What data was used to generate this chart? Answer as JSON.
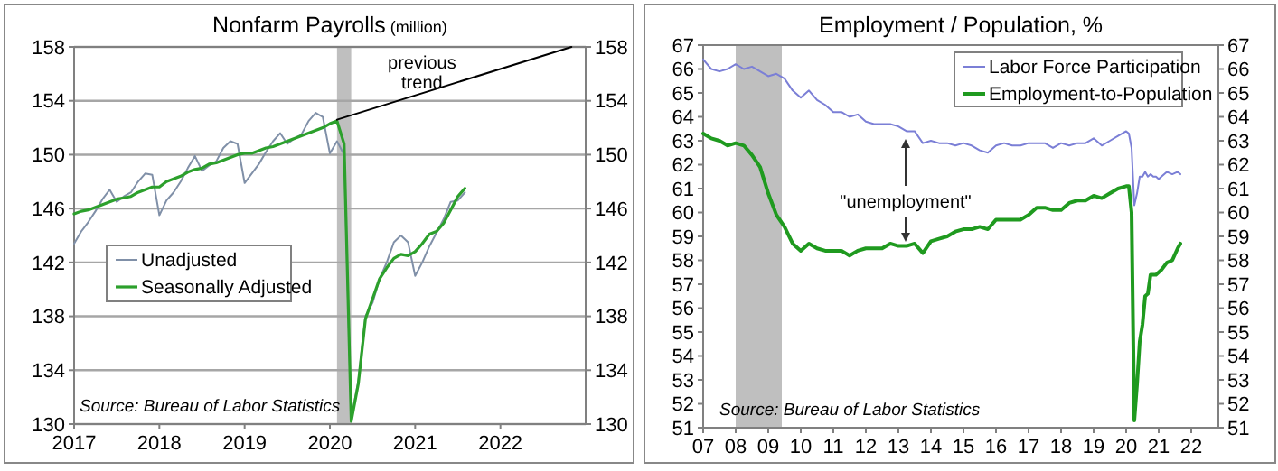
{
  "chart_data": [
    {
      "type": "line",
      "title": "Nonfarm Payrolls",
      "subtitle": "(million)",
      "xlim": [
        "2017",
        "2023"
      ],
      "xticks": [
        "2017",
        "2018",
        "2019",
        "2020",
        "2021",
        "2022"
      ],
      "ylim": [
        130,
        158
      ],
      "yticks": [
        130,
        134,
        138,
        142,
        146,
        150,
        154,
        158
      ],
      "y2lim": [
        130,
        158
      ],
      "y2ticks": [
        130,
        134,
        138,
        142,
        146,
        150,
        154,
        158
      ],
      "grid": "y",
      "legend": "left",
      "line_style": "solid",
      "marker": "none",
      "bands": [
        {
          "axis": "x",
          "from": "2020-02",
          "to": "2020-04",
          "color": "#bfbfbf"
        }
      ],
      "annotations": [
        "previous trend",
        "Source: Bureau of Labor Statistics"
      ],
      "x": [
        "2017-01",
        "2017-02",
        "2017-03",
        "2017-04",
        "2017-05",
        "2017-06",
        "2017-07",
        "2017-08",
        "2017-09",
        "2017-10",
        "2017-11",
        "2017-12",
        "2018-01",
        "2018-02",
        "2018-03",
        "2018-04",
        "2018-05",
        "2018-06",
        "2018-07",
        "2018-08",
        "2018-09",
        "2018-10",
        "2018-11",
        "2018-12",
        "2019-01",
        "2019-02",
        "2019-03",
        "2019-04",
        "2019-05",
        "2019-06",
        "2019-07",
        "2019-08",
        "2019-09",
        "2019-10",
        "2019-11",
        "2019-12",
        "2020-01",
        "2020-02",
        "2020-03",
        "2020-04",
        "2020-05",
        "2020-06",
        "2020-07",
        "2020-08",
        "2020-09",
        "2020-10",
        "2020-11",
        "2020-12",
        "2021-01",
        "2021-02",
        "2021-03",
        "2021-04",
        "2021-05",
        "2021-06",
        "2021-07",
        "2021-08"
      ],
      "series": [
        {
          "name": "Unadjusted",
          "color": "#8090a8",
          "values": [
            143.4,
            144.3,
            145.0,
            145.8,
            146.7,
            147.4,
            146.5,
            146.9,
            147.2,
            148.0,
            148.6,
            148.5,
            145.5,
            146.6,
            147.2,
            148.0,
            149.0,
            149.9,
            148.8,
            149.2,
            149.5,
            150.5,
            151.0,
            150.8,
            147.9,
            148.6,
            149.3,
            150.2,
            151.0,
            151.6,
            150.8,
            151.2,
            151.5,
            152.5,
            153.1,
            152.8,
            150.1,
            151.0,
            150.0,
            130.4,
            133.2,
            138.0,
            139.0,
            140.8,
            142.0,
            143.5,
            144.0,
            143.5,
            141.0,
            142.0,
            143.2,
            144.2,
            145.2,
            146.5,
            146.6,
            147.2
          ]
        },
        {
          "name": "Seasonally Adjusted",
          "color": "#2ca02c",
          "values": [
            145.6,
            145.8,
            145.9,
            146.1,
            146.3,
            146.5,
            146.7,
            146.8,
            146.9,
            147.2,
            147.4,
            147.6,
            147.6,
            148.0,
            148.2,
            148.4,
            148.7,
            148.9,
            149.0,
            149.3,
            149.4,
            149.6,
            149.8,
            150.0,
            150.1,
            150.1,
            150.3,
            150.5,
            150.6,
            150.8,
            151.0,
            151.2,
            151.4,
            151.6,
            151.8,
            152.0,
            152.3,
            152.5,
            150.8,
            130.2,
            133.0,
            137.8,
            139.3,
            140.8,
            141.6,
            142.3,
            142.6,
            142.5,
            142.8,
            143.4,
            144.1,
            144.3,
            144.9,
            145.9,
            146.9,
            147.5
          ]
        },
        {
          "type": "line",
          "color": "#000000",
          "x": [
            "2020-02",
            "2022-11"
          ],
          "values": [
            152.6,
            158
          ]
        }
      ]
    },
    {
      "type": "line",
      "title": "Employment / Population, %",
      "xlim": [
        "2007",
        "2022-11"
      ],
      "xticks": [
        {
          "value": "2007",
          "label": "07"
        },
        {
          "value": "2008",
          "label": "08"
        },
        {
          "value": "2009",
          "label": "09"
        },
        {
          "value": "2010",
          "label": "10"
        },
        {
          "value": "2011",
          "label": "11"
        },
        {
          "value": "2012",
          "label": "12"
        },
        {
          "value": "2013",
          "label": "13"
        },
        {
          "value": "2014",
          "label": "14"
        },
        {
          "value": "2015",
          "label": "15"
        },
        {
          "value": "2016",
          "label": "16"
        },
        {
          "value": "2017",
          "label": "17"
        },
        {
          "value": "2018",
          "label": "18"
        },
        {
          "value": "2019",
          "label": "19"
        },
        {
          "value": "2020",
          "label": "20"
        },
        {
          "value": "2021",
          "label": "21"
        },
        {
          "value": "2022",
          "label": "22"
        }
      ],
      "ylim": [
        51,
        67
      ],
      "yticks": [
        51,
        52,
        53,
        54,
        55,
        56,
        57,
        58,
        59,
        60,
        61,
        62,
        63,
        64,
        65,
        66,
        67
      ],
      "y2lim": [
        51,
        67
      ],
      "y2ticks": [
        51,
        52,
        53,
        54,
        55,
        56,
        57,
        58,
        59,
        60,
        61,
        62,
        63,
        64,
        65,
        66,
        67
      ],
      "legend": "top right",
      "line_style": "solid",
      "marker": "none",
      "bands": [
        {
          "axis": "x",
          "from": "2008-01",
          "to": "2009-06",
          "color": "#bfbfbf"
        }
      ],
      "annotations": [
        "\"unemployment\"",
        "Source: Bureau of Labor Statistics"
      ],
      "x": [
        "2007-01",
        "2007-04",
        "2007-07",
        "2007-10",
        "2008-01",
        "2008-04",
        "2008-07",
        "2008-10",
        "2009-01",
        "2009-04",
        "2009-07",
        "2009-10",
        "2010-01",
        "2010-04",
        "2010-07",
        "2010-10",
        "2011-01",
        "2011-04",
        "2011-07",
        "2011-10",
        "2012-01",
        "2012-04",
        "2012-07",
        "2012-10",
        "2013-01",
        "2013-04",
        "2013-07",
        "2013-10",
        "2014-01",
        "2014-04",
        "2014-07",
        "2014-10",
        "2015-01",
        "2015-04",
        "2015-07",
        "2015-10",
        "2016-01",
        "2016-04",
        "2016-07",
        "2016-10",
        "2017-01",
        "2017-04",
        "2017-07",
        "2017-10",
        "2018-01",
        "2018-04",
        "2018-07",
        "2018-10",
        "2019-01",
        "2019-04",
        "2019-07",
        "2019-10",
        "2020-01",
        "2020-02",
        "2020-03",
        "2020-04",
        "2020-05",
        "2020-06",
        "2020-07",
        "2020-08",
        "2020-09",
        "2020-10",
        "2020-11",
        "2020-12",
        "2021-01",
        "2021-02",
        "2021-04",
        "2021-06",
        "2021-08",
        "2021-09"
      ],
      "series": [
        {
          "name": "Labor Force Participation",
          "color": "#7b7fd6",
          "values": [
            66.4,
            66.0,
            65.9,
            66.0,
            66.2,
            66.0,
            66.1,
            65.9,
            65.7,
            65.8,
            65.6,
            65.1,
            64.8,
            65.1,
            64.7,
            64.5,
            64.2,
            64.2,
            64.0,
            64.1,
            63.8,
            63.7,
            63.7,
            63.7,
            63.6,
            63.4,
            63.4,
            62.9,
            63.0,
            62.9,
            62.9,
            62.8,
            62.9,
            62.8,
            62.6,
            62.5,
            62.8,
            62.9,
            62.8,
            62.8,
            62.9,
            62.9,
            62.9,
            62.7,
            62.9,
            62.8,
            62.9,
            62.9,
            63.1,
            62.8,
            63.0,
            63.2,
            63.4,
            63.3,
            62.7,
            60.3,
            60.8,
            61.5,
            61.5,
            61.7,
            61.5,
            61.6,
            61.5,
            61.5,
            61.4,
            61.5,
            61.7,
            61.6,
            61.7,
            61.6
          ]
        },
        {
          "name": "Employment-to-Population",
          "color": "#1f9a1f",
          "values": [
            63.3,
            63.1,
            63.0,
            62.8,
            62.9,
            62.8,
            62.4,
            61.9,
            60.8,
            59.9,
            59.4,
            58.7,
            58.4,
            58.7,
            58.5,
            58.4,
            58.4,
            58.4,
            58.2,
            58.4,
            58.5,
            58.5,
            58.5,
            58.7,
            58.6,
            58.6,
            58.7,
            58.3,
            58.8,
            58.9,
            59.0,
            59.2,
            59.3,
            59.3,
            59.4,
            59.3,
            59.7,
            59.7,
            59.7,
            59.7,
            59.9,
            60.2,
            60.2,
            60.1,
            60.1,
            60.4,
            60.5,
            60.5,
            60.7,
            60.6,
            60.8,
            61.0,
            61.1,
            61.1,
            60.0,
            51.3,
            52.8,
            54.6,
            55.3,
            56.5,
            56.6,
            57.4,
            57.4,
            57.4,
            57.5,
            57.6,
            57.9,
            58.0,
            58.5,
            58.7
          ]
        }
      ]
    }
  ]
}
